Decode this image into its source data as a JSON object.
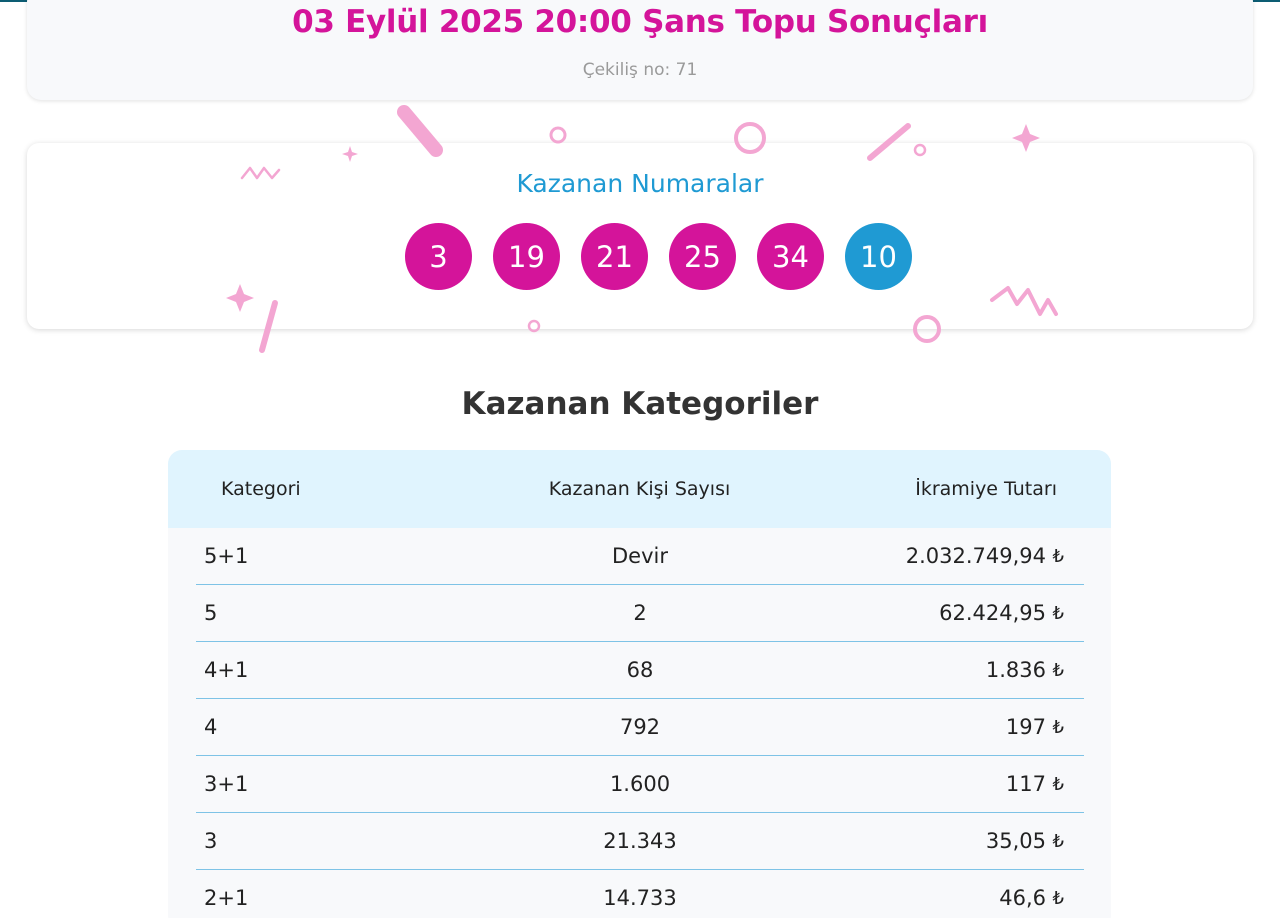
{
  "header": {
    "title": "03 Eylül 2025 20:00 Şans Topu Sonuçları",
    "draw_number": "Çekiliş no: 71"
  },
  "winning_numbers": {
    "title": "Kazanan Numaralar",
    "main": [
      "3",
      "19",
      "21",
      "25",
      "34"
    ],
    "bonus": "10"
  },
  "categories": {
    "title": "Kazanan Kategoriler",
    "columns": [
      "Kategori",
      "Kazanan Kişi Sayısı",
      "İkramiye Tutarı"
    ],
    "currency_symbol": "₺",
    "rows": [
      {
        "category": "5+1",
        "winners": "Devir",
        "prize": "2.032.749,94"
      },
      {
        "category": "5",
        "winners": "2",
        "prize": "62.424,95"
      },
      {
        "category": "4+1",
        "winners": "68",
        "prize": "1.836"
      },
      {
        "category": "4",
        "winners": "792",
        "prize": "197"
      },
      {
        "category": "3+1",
        "winners": "1.600",
        "prize": "117"
      },
      {
        "category": "3",
        "winners": "21.343",
        "prize": "35,05"
      },
      {
        "category": "2+1",
        "winners": "14.733",
        "prize": "46,6"
      }
    ]
  },
  "colors": {
    "accent_pink": "#d4149a",
    "accent_blue": "#1f9ad3",
    "confetti_pink": "#f3a6d2"
  }
}
